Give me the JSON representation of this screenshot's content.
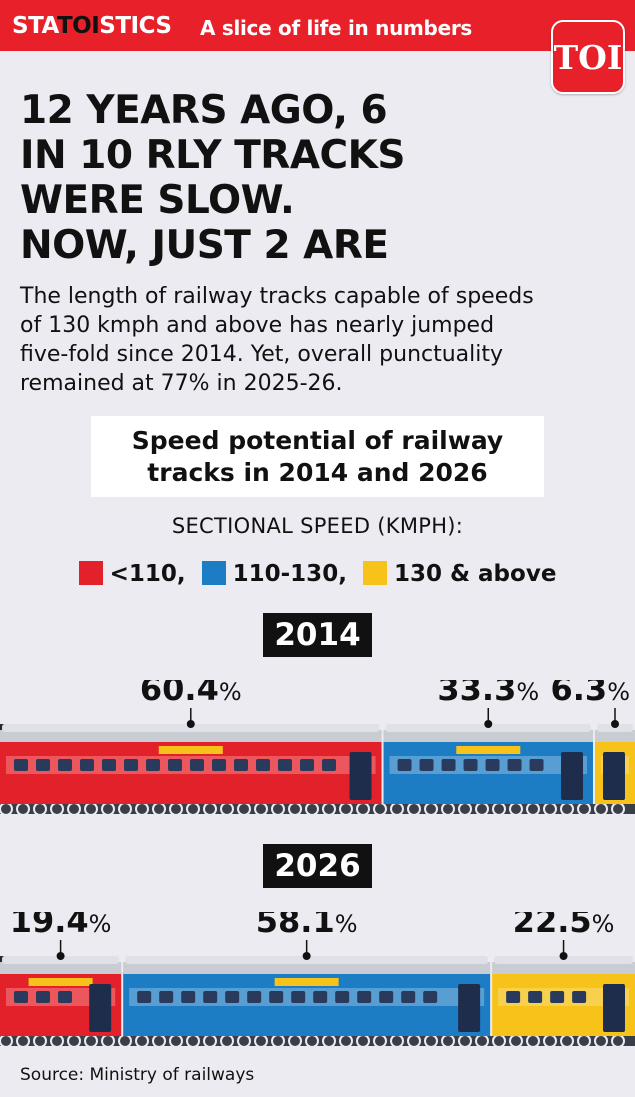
{
  "banner": {
    "brand_pre": "STA",
    "brand_mid": "TOI",
    "brand_post": "STICS",
    "tagline": "A slice of life in numbers",
    "logo_text": "TOI"
  },
  "headline": {
    "line1": "12 YEARS AGO, 6",
    "line2": "IN 10 RLY TRACKS",
    "line3": "WERE SLOW.",
    "line4": "NOW, JUST 2 ARE"
  },
  "subtext": {
    "line1": "The length of railway tracks capable of speeds",
    "line2": "of 130 kmph and above has nearly jumped",
    "line3": "five-fold since 2014. Yet, overall punctuality",
    "line4": "remained at 77% in 2025-26."
  },
  "source": "Source: Ministry of railways",
  "colors": {
    "accent_red": "#e8202a",
    "slow": "#e3212b",
    "medium": "#1d7dc4",
    "fast": "#f7c31a"
  },
  "chart_data": {
    "type": "bar",
    "title_line1": "Speed potential of railway",
    "title_line2": "tracks in 2014 and 2026",
    "legend_title": "SECTIONAL SPEED (KMPH):",
    "legend_labels": [
      "<110,",
      "110-130,",
      "130 & above"
    ],
    "categories": [
      "<110",
      "110-130",
      "130 & above"
    ],
    "unit": "%",
    "series": [
      {
        "name": "2014",
        "values": [
          60.4,
          33.3,
          6.3
        ],
        "labels": [
          "60.4",
          "33.3",
          "6.3"
        ]
      },
      {
        "name": "2026",
        "values": [
          19.4,
          58.1,
          22.5
        ],
        "labels": [
          "19.4",
          "58.1",
          "22.5"
        ]
      }
    ]
  }
}
